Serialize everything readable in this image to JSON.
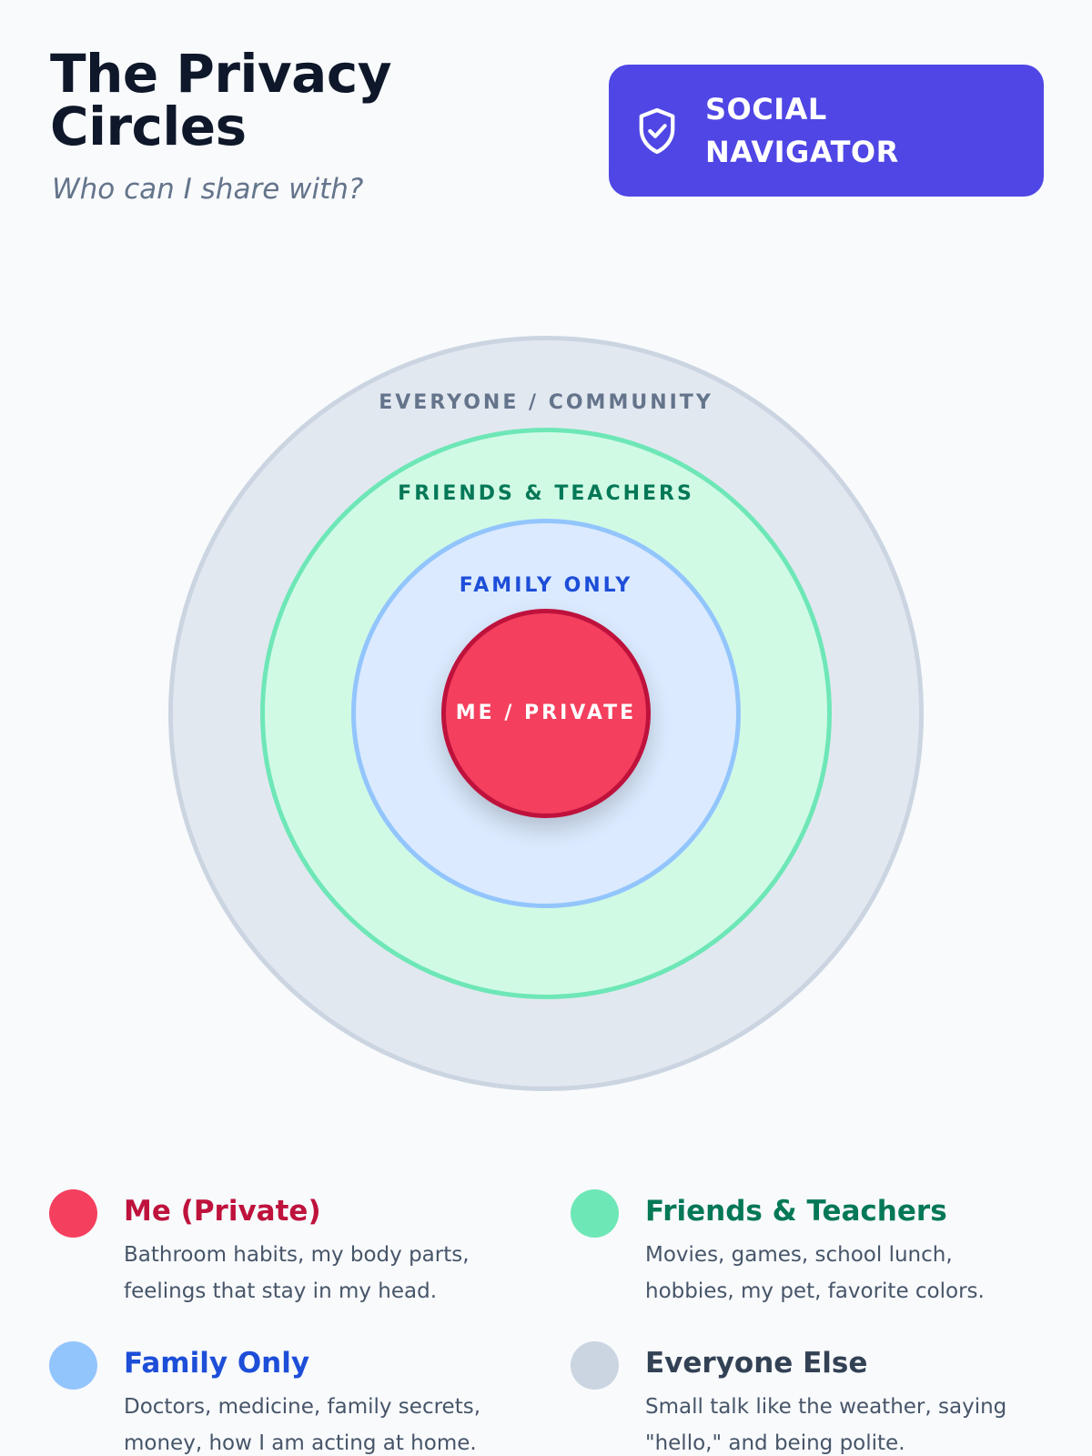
{
  "header": {
    "title": "The Privacy Circles",
    "subtitle": "Who can I share with?",
    "badge": {
      "icon": "shield-check-icon",
      "label": "SOCIAL NAVIGATOR",
      "color": "#4f46e5"
    }
  },
  "circles": [
    {
      "label": "EVERYONE / COMMUNITY",
      "fill": "#e2e8f0",
      "stroke": "#cbd5e1",
      "text": "#64748b"
    },
    {
      "label": "FRIENDS & TEACHERS",
      "fill": "#d1fae5",
      "stroke": "#6ee7b7",
      "text": "#047857"
    },
    {
      "label": "FAMILY ONLY",
      "fill": "#dbeafe",
      "stroke": "#93c5fd",
      "text": "#1d4ed8"
    },
    {
      "label": "ME / PRIVATE",
      "fill": "#f43f5e",
      "stroke": "#be123c",
      "text": "#ffffff"
    }
  ],
  "legend": [
    {
      "title": "Me (Private)",
      "desc": "Bathroom habits, my body parts, feelings that stay in my head.",
      "dot": "#f43f5e",
      "color": "#be123c"
    },
    {
      "title": "Friends & Teachers",
      "desc": "Movies, games, school lunch, hobbies, my pet, favorite colors.",
      "dot": "#6ee7b7",
      "color": "#047857"
    },
    {
      "title": "Family Only",
      "desc": "Doctors, medicine, family secrets, money, how I am acting at home.",
      "dot": "#93c5fd",
      "color": "#1d4ed8"
    },
    {
      "title": "Everyone Else",
      "desc": "Small talk like the weather, saying \"hello,\" and being polite.",
      "dot": "#cbd5e1",
      "color": "#334155"
    }
  ]
}
